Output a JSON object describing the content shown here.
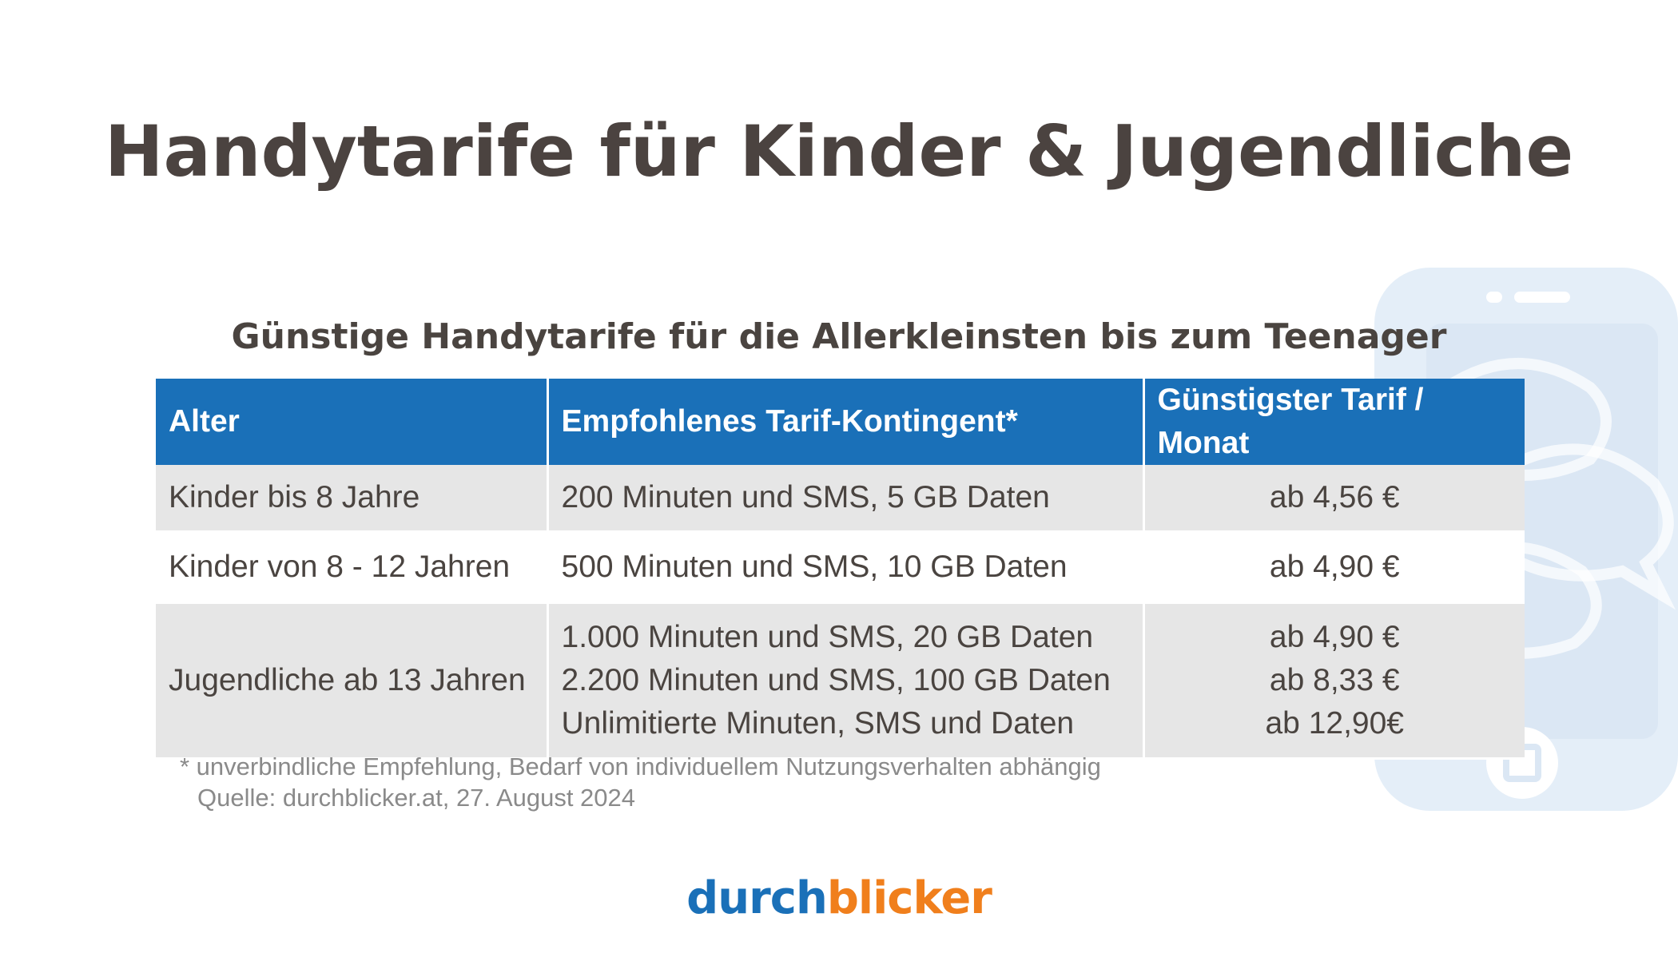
{
  "title": "Handytarife für Kinder & Jugendliche",
  "subtitle": "Günstige Handytarife für die Allerkleinsten bis zum Teenager",
  "table": {
    "headers": [
      "Alter",
      "Empfohlenes Tarif-Kontingent*",
      "Günstigster Tarif / Monat"
    ],
    "rows": [
      {
        "age": "Kinder bis 8 Jahre",
        "plans": [
          "200 Minuten und SMS, 5 GB Daten"
        ],
        "prices": [
          "ab 4,56 €"
        ]
      },
      {
        "age": "Kinder von 8 - 12 Jahren",
        "plans": [
          "500 Minuten und SMS, 10 GB Daten"
        ],
        "prices": [
          "ab 4,90 €"
        ]
      },
      {
        "age": "Jugendliche ab 13 Jahren",
        "plans": [
          "1.000 Minuten und SMS, 20 GB Daten",
          "2.200 Minuten und SMS, 100 GB Daten",
          "Unlimitierte Minuten, SMS und Daten"
        ],
        "prices": [
          "ab 4,90 €",
          "ab 8,33 €",
          "ab 12,90€"
        ]
      }
    ]
  },
  "footnote": {
    "note": "* unverbindliche Empfehlung, Bedarf von individuellem Nutzungsverhalten abhängig",
    "source": "Quelle: durchblicker.at, 27. August 2024"
  },
  "logo": {
    "part1": "durch",
    "part2": "blicker"
  },
  "colors": {
    "header_blue": "#1a70b8",
    "logo_orange": "#f07f1c",
    "row_grey": "#e6e6e6",
    "title_brown": "#4b4340",
    "decoration_light_blue": "#e4eef8"
  },
  "icons": [
    "smartphone-chat-decoration-icon"
  ]
}
